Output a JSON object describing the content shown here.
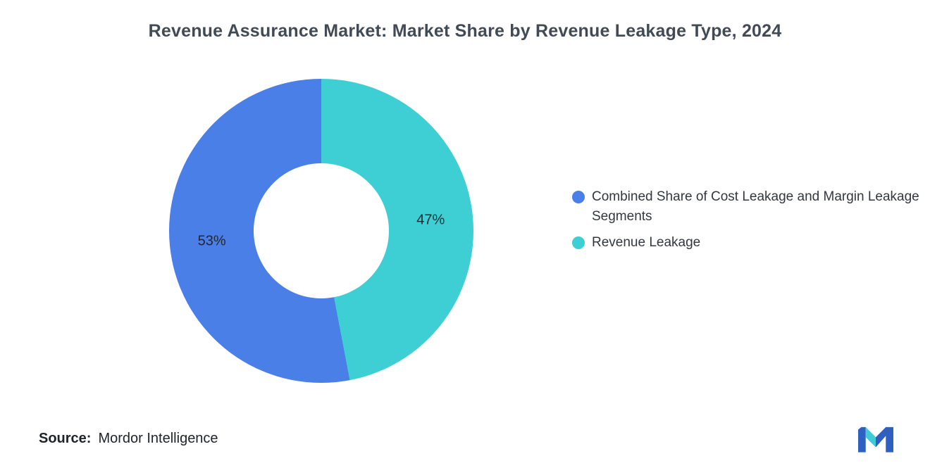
{
  "page": {
    "background": "#FFFFFF"
  },
  "chart_data": {
    "type": "pie",
    "donut": true,
    "title": "Revenue Assurance Market: Market Share by Revenue Leakage Type, 2024",
    "unit": "%",
    "series": [
      {
        "name": "Combined Share of Cost Leakage and Margin Leakage Segments",
        "value": 53,
        "label": "53%",
        "color": "#4A7FE8"
      },
      {
        "name": "Revenue Leakage",
        "value": 47,
        "label": "47%",
        "color": "#3ECFD4"
      }
    ],
    "legend_position": "right",
    "labels_inside": true,
    "order_clockwise_from_top": [
      "Revenue Leakage",
      "Combined Share of Cost Leakage and Margin Leakage Segments"
    ]
  },
  "source": {
    "label": "Source:",
    "value": "Mordor Intelligence"
  },
  "logo": {
    "name": "mordor-intelligence-logo",
    "blue": "#2F5FC0",
    "teal": "#3FCBD5"
  }
}
